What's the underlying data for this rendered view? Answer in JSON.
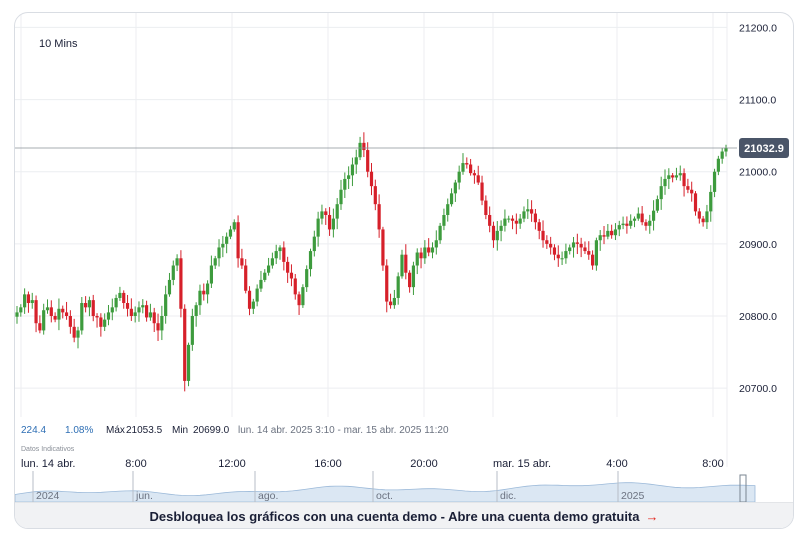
{
  "interval_label": "10 Mins",
  "price_label": "21032.9",
  "stats": {
    "change": "224.4",
    "change_pct": "1.08%",
    "max_label": "Máx",
    "max_value": "21053.5",
    "min_label": "Min",
    "min_value": "20699.0",
    "range": "lun. 14 abr. 2025 3:10 - mar. 15 abr. 2025 11:20"
  },
  "disclaimer": "Datos Indicativos",
  "time_labels": [
    "lun. 14 abr.",
    "8:00",
    "12:00",
    "16:00",
    "20:00",
    "mar. 15 abr.",
    "4:00",
    "8:00"
  ],
  "navigator_labels": [
    "2024",
    "jun.",
    "ago.",
    "oct.",
    "dic.",
    "2025"
  ],
  "cta": {
    "text": "Desbloquea los gráficos con una cuenta demo - Abre una cuenta demo gratuita",
    "arrow": "→"
  },
  "colors": {
    "up": "#3d9b3d",
    "down": "#d6202a",
    "price_tag": "#4a5568",
    "accent_blue": "#2d6eb4"
  },
  "chart_data": {
    "type": "candlestick",
    "interval": "10 Mins",
    "ylim": [
      20660,
      21220
    ],
    "y_ticks": [
      20700,
      20800,
      20900,
      21000,
      21100,
      21200
    ],
    "last_price": 21032.9,
    "high": 21053.5,
    "low": 20699.0,
    "x_ticks": [
      "lun. 14 abr.",
      "8:00",
      "12:00",
      "16:00",
      "20:00",
      "mar. 15 abr.",
      "4:00",
      "8:00"
    ],
    "series": [
      {
        "values": [
          20805,
          20812,
          20830,
          20818,
          20822,
          20790,
          20780,
          20808,
          20812,
          20800,
          20795,
          20810,
          20805,
          20800,
          20785,
          20770,
          20780,
          20818,
          20812,
          20822,
          20800,
          20798,
          20785,
          20795,
          20805,
          20812,
          20825,
          20832,
          20818,
          20810,
          20800,
          20805,
          20812,
          20815,
          20798,
          20805,
          20790,
          20780,
          20800,
          20830,
          20850,
          20870,
          20880,
          20810,
          20710,
          20760,
          20800,
          20815,
          20835,
          20830,
          20845,
          20870,
          20880,
          20895,
          20900,
          20910,
          20920,
          20930,
          20880,
          20870,
          20835,
          20810,
          20820,
          20838,
          20850,
          20860,
          20870,
          20880,
          20890,
          20895,
          20875,
          20860,
          20852,
          20830,
          20815,
          20840,
          20865,
          20890,
          20910,
          20935,
          20945,
          20940,
          20920,
          20935,
          20955,
          20975,
          20990,
          20995,
          21010,
          21020,
          21040,
          21030,
          21000,
          20980,
          20955,
          20920,
          20870,
          20820,
          20815,
          20825,
          20855,
          20885,
          20860,
          20840,
          20870,
          20888,
          20880,
          20895,
          20888,
          20895,
          20905,
          20925,
          20940,
          20955,
          20970,
          20985,
          21000,
          21012,
          21010,
          20998,
          20995,
          20985,
          20960,
          20940,
          20925,
          20905,
          20918,
          20925,
          20935,
          20935,
          20932,
          20928,
          20935,
          20945,
          20948,
          20942,
          20930,
          20918,
          20905,
          20900,
          20895,
          20885,
          20880,
          20880,
          20890,
          20895,
          20902,
          20900,
          20895,
          20890,
          20885,
          20870,
          20905,
          20912,
          20910,
          20918,
          20912,
          20920,
          20926,
          20928,
          20925,
          20932,
          20935,
          20942,
          20930,
          20925,
          20932,
          20946,
          20962,
          20980,
          20990,
          20995,
          20992,
          20995,
          20998,
          20980,
          20975,
          20970,
          20945,
          20935,
          20930,
          20945,
          20972,
          21000,
          21018,
          21028,
          21033
        ]
      }
    ]
  }
}
